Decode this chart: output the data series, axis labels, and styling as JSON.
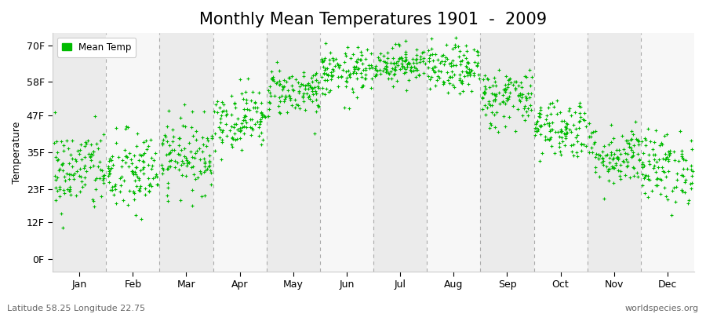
{
  "title": "Monthly Mean Temperatures 1901  -  2009",
  "ylabel": "Temperature",
  "subtitle_left": "Latitude 58.25 Longitude 22.75",
  "subtitle_right": "worldspecies.org",
  "ytick_labels": [
    "0F",
    "12F",
    "23F",
    "35F",
    "47F",
    "58F",
    "70F"
  ],
  "ytick_values": [
    0,
    12,
    23,
    35,
    47,
    58,
    70
  ],
  "ylim": [
    -4,
    74
  ],
  "months": [
    "Jan",
    "Feb",
    "Mar",
    "Apr",
    "May",
    "Jun",
    "Jul",
    "Aug",
    "Sep",
    "Oct",
    "Nov",
    "Dec"
  ],
  "background_color": "#ffffff",
  "plot_bg_color": "#f2f2f2",
  "band_color_even": "#ebebeb",
  "band_color_odd": "#f7f7f7",
  "dot_color": "#00bb00",
  "legend_label": "Mean Temp",
  "title_fontsize": 15,
  "axis_fontsize": 9,
  "month_means": [
    29,
    28,
    34,
    46,
    55,
    61,
    64,
    62,
    53,
    43,
    34,
    30
  ],
  "month_stds": [
    7,
    7,
    6,
    5,
    4,
    4,
    3,
    4,
    5,
    5,
    5,
    6
  ],
  "n_years": 109
}
